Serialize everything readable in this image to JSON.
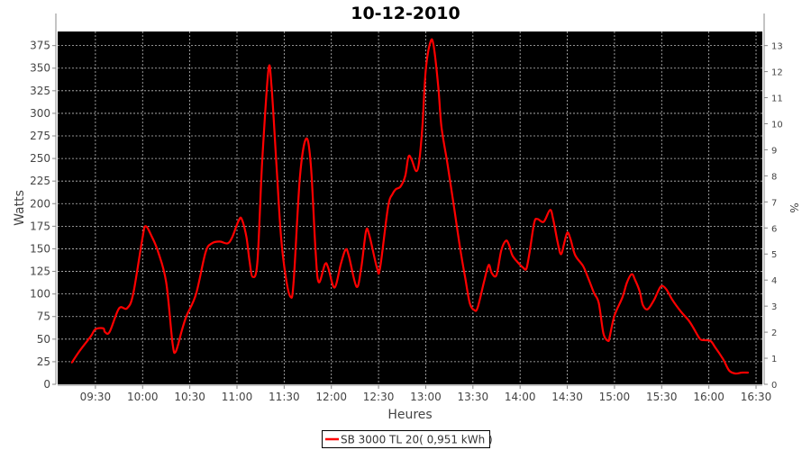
{
  "chart_data": {
    "type": "line",
    "title": "10-12-2010",
    "xlabel": "Heures",
    "ylabel": "Watts",
    "y2label": "%",
    "xlim": [
      "09:06",
      "16:34"
    ],
    "ylim": [
      0,
      390.6
    ],
    "y2lim": [
      0,
      13.54
    ],
    "x_ticks": [
      "09:30",
      "10:00",
      "10:30",
      "11:00",
      "11:30",
      "12:00",
      "12:30",
      "13:00",
      "13:30",
      "14:00",
      "14:30",
      "15:00",
      "15:30",
      "16:00",
      "16:30"
    ],
    "y_ticks": [
      0,
      25,
      50,
      75,
      100,
      125,
      150,
      175,
      200,
      225,
      250,
      275,
      300,
      325,
      350,
      375
    ],
    "y2_ticks": [
      0,
      1,
      2,
      3,
      4,
      5,
      6,
      7,
      8,
      9,
      10,
      11,
      12,
      13
    ],
    "grid": true,
    "legend_placement": "bottom",
    "background_color": "#000000",
    "grid_color": "#c0c0c0",
    "series": [
      {
        "name": "SB 3000 TL 20( 0,951 kWh )",
        "color": "#ff0000",
        "x": [
          "09:15",
          "09:20",
          "09:27",
          "09:30",
          "09:35",
          "09:36",
          "09:39",
          "09:45",
          "09:50",
          "09:54",
          "10:00",
          "10:02",
          "10:06",
          "10:10",
          "10:15",
          "10:19",
          "10:21",
          "10:25",
          "10:28",
          "10:34",
          "10:40",
          "10:44",
          "10:49",
          "10:54",
          "10:57",
          "11:01",
          "11:03",
          "11:06",
          "11:08",
          "11:10",
          "11:13",
          "11:16",
          "11:20",
          "11:22",
          "11:25",
          "11:28",
          "11:31",
          "11:34",
          "11:36",
          "11:40",
          "11:44",
          "11:47",
          "11:50",
          "11:52",
          "11:56",
          "11:58",
          "12:02",
          "12:06",
          "12:09",
          "12:11",
          "12:16",
          "12:19",
          "12:22",
          "12:24",
          "12:29",
          "12:31",
          "12:36",
          "12:39",
          "12:41",
          "12:44",
          "12:47",
          "12:49",
          "12:51",
          "12:54",
          "12:56",
          "12:58",
          "13:00",
          "13:03",
          "13:05",
          "13:08",
          "13:10",
          "13:14",
          "13:18",
          "13:22",
          "13:25",
          "13:28",
          "13:31",
          "13:33",
          "13:37",
          "13:40",
          "13:42",
          "13:45",
          "13:48",
          "13:51",
          "13:53",
          "13:55",
          "13:58",
          "14:02",
          "14:04",
          "14:06",
          "14:09",
          "14:11",
          "14:15",
          "14:19",
          "14:21",
          "14:24",
          "14:26",
          "14:28",
          "14:30",
          "14:32",
          "14:35",
          "14:40",
          "14:43",
          "14:47",
          "14:50",
          "14:53",
          "14:56",
          "14:57",
          "15:00",
          "15:05",
          "15:08",
          "15:11",
          "15:13",
          "15:16",
          "15:18",
          "15:21",
          "15:25",
          "15:28",
          "15:30",
          "15:33",
          "15:37",
          "15:42",
          "15:47",
          "15:50",
          "15:54",
          "15:56",
          "16:01",
          "16:04",
          "16:09",
          "16:13",
          "16:17",
          "16:21",
          "16:25"
        ],
        "y": [
          24,
          37,
          53,
          61,
          62,
          58,
          58,
          84,
          84,
          100,
          163,
          175,
          163,
          146,
          113,
          46,
          36,
          60,
          76,
          100,
          146,
          156,
          158,
          156,
          163,
          181,
          183,
          163,
          136,
          119,
          136,
          246,
          348,
          329,
          246,
          163,
          119,
          97,
          113,
          229,
          272,
          242,
          146,
          113,
          133,
          129,
          107,
          133,
          149,
          143,
          108,
          129,
          169,
          166,
          129,
          129,
          196,
          211,
          216,
          219,
          231,
          252,
          249,
          236,
          249,
          289,
          348,
          379,
          375,
          329,
          285,
          242,
          196,
          149,
          119,
          90,
          82,
          85,
          113,
          132,
          123,
          121,
          148,
          159,
          154,
          143,
          136,
          129,
          128,
          146,
          179,
          183,
          180,
          193,
          183,
          156,
          144,
          156,
          168,
          161,
          143,
          131,
          119,
          101,
          90,
          56,
          48,
          53,
          76,
          96,
          113,
          122,
          116,
          103,
          88,
          83,
          93,
          104,
          109,
          105,
          93,
          81,
          71,
          63,
          51,
          49,
          48,
          41,
          28,
          15,
          12,
          13,
          13
        ]
      }
    ]
  }
}
